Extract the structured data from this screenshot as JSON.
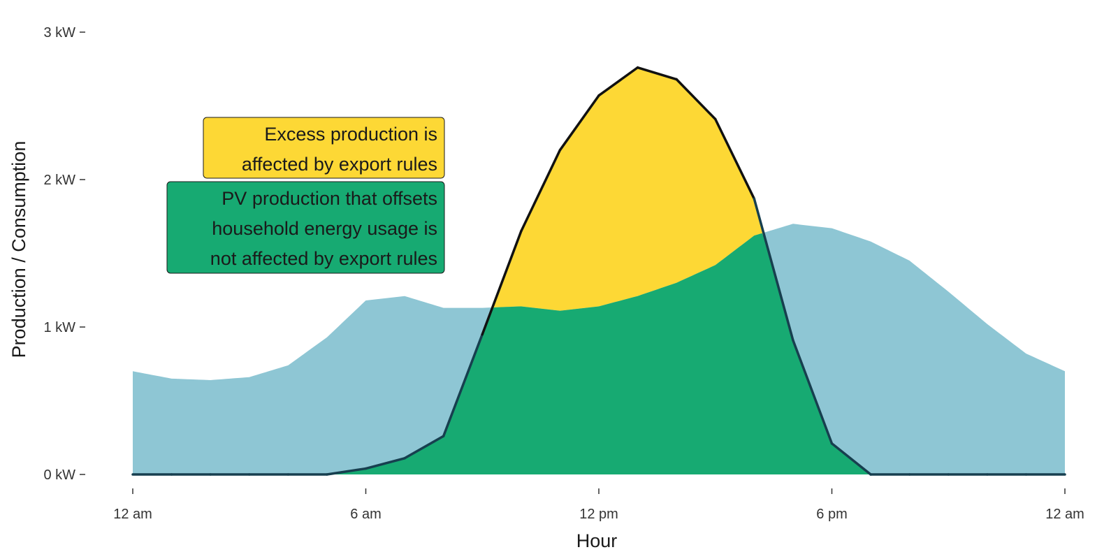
{
  "chart_data": {
    "type": "area",
    "title": "",
    "xlabel": "Hour",
    "ylabel": "Production / Consumption",
    "xlim": [
      0,
      24
    ],
    "ylim": [
      0,
      3
    ],
    "x_ticks": [
      {
        "value": 0,
        "label": "12 am"
      },
      {
        "value": 6,
        "label": "6 am"
      },
      {
        "value": 12,
        "label": "12 pm"
      },
      {
        "value": 18,
        "label": "6 pm"
      },
      {
        "value": 24,
        "label": "12 am"
      }
    ],
    "y_ticks": [
      {
        "value": 0,
        "label": "0 kW"
      },
      {
        "value": 1,
        "label": "1 kW"
      },
      {
        "value": 2,
        "label": "2 kW"
      },
      {
        "value": 3,
        "label": "3 kW"
      }
    ],
    "grid": false,
    "x": [
      0,
      1,
      2,
      3,
      4,
      5,
      6,
      7,
      8,
      9,
      10,
      11,
      12,
      13,
      14,
      15,
      16,
      17,
      18,
      19,
      20,
      21,
      22,
      23,
      24
    ],
    "series": [
      {
        "role": "consumption",
        "values": [
          0.7,
          0.65,
          0.64,
          0.66,
          0.74,
          0.93,
          1.18,
          1.21,
          1.13,
          1.13,
          1.14,
          1.11,
          1.14,
          1.21,
          1.3,
          1.42,
          1.62,
          1.7,
          1.67,
          1.58,
          1.45,
          1.24,
          1.02,
          0.82,
          0.7
        ]
      },
      {
        "role": "pv-production",
        "values": [
          0,
          0,
          0,
          0,
          0,
          0,
          0.04,
          0.11,
          0.26,
          0.95,
          1.65,
          2.2,
          2.57,
          2.76,
          2.68,
          2.41,
          1.87,
          0.91,
          0.21,
          0,
          0,
          0,
          0,
          0,
          0
        ]
      }
    ],
    "annotations": [
      {
        "lines": [
          "Excess production is",
          "affected by export rules"
        ],
        "color": "#FDD835"
      },
      {
        "lines": [
          "PV production that offsets",
          "household energy usage is",
          "not affected by export rules"
        ],
        "color": "#17AA72"
      }
    ],
    "colors": {
      "consumption": "#8EC6D4",
      "excess": "#FDD835",
      "offset": "#17AA72",
      "pv_line": "#111111",
      "overlap_line": "#173F4F"
    }
  }
}
